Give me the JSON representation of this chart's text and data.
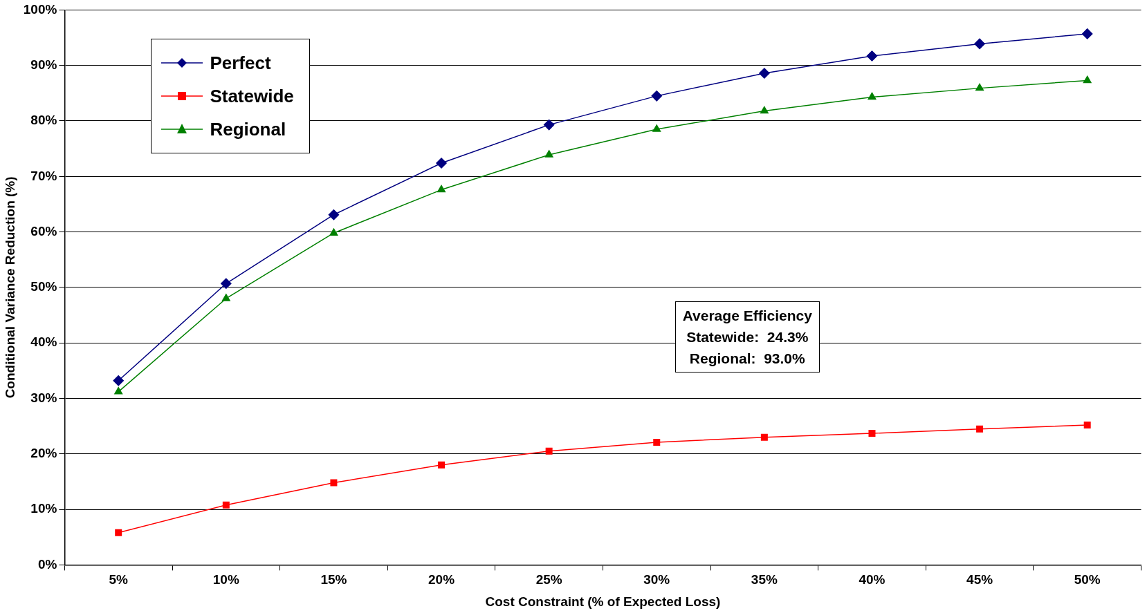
{
  "chart_data": {
    "type": "line",
    "xlabel": "Cost Constraint (% of Expected Loss)",
    "ylabel": "Conditional Variance Reduction (%)",
    "categories": [
      "5%",
      "10%",
      "15%",
      "20%",
      "25%",
      "30%",
      "35%",
      "40%",
      "45%",
      "50%"
    ],
    "series": [
      {
        "name": "Perfect",
        "color": "#000080",
        "marker": "diamond",
        "values": [
          33.2,
          50.7,
          63.1,
          72.4,
          79.3,
          84.5,
          88.6,
          91.7,
          93.9,
          95.7
        ]
      },
      {
        "name": "Statewide",
        "color": "#ff0000",
        "marker": "square",
        "values": [
          5.8,
          10.8,
          14.8,
          18.0,
          20.5,
          22.1,
          23.0,
          23.7,
          24.5,
          25.2
        ]
      },
      {
        "name": "Regional",
        "color": "#008000",
        "marker": "triangle",
        "values": [
          31.2,
          48.0,
          59.8,
          67.6,
          73.9,
          78.5,
          81.8,
          84.3,
          85.9,
          87.3
        ]
      }
    ],
    "ylim": [
      0,
      100
    ],
    "yticks": [
      {
        "value": 0,
        "label": "0%"
      },
      {
        "value": 10,
        "label": "10%"
      },
      {
        "value": 20,
        "label": "20%"
      },
      {
        "value": 30,
        "label": "30%"
      },
      {
        "value": 40,
        "label": "40%"
      },
      {
        "value": 50,
        "label": "50%"
      },
      {
        "value": 60,
        "label": "60%"
      },
      {
        "value": 70,
        "label": "70%"
      },
      {
        "value": 80,
        "label": "80%"
      },
      {
        "value": 90,
        "label": "90%"
      },
      {
        "value": 100,
        "label": "100%"
      }
    ],
    "grid": "y",
    "legend": "top left",
    "line_style": "solid",
    "annotations": [
      "Average Efficiency",
      "Statewide:  24.3%",
      "Regional:  93.0%"
    ]
  }
}
